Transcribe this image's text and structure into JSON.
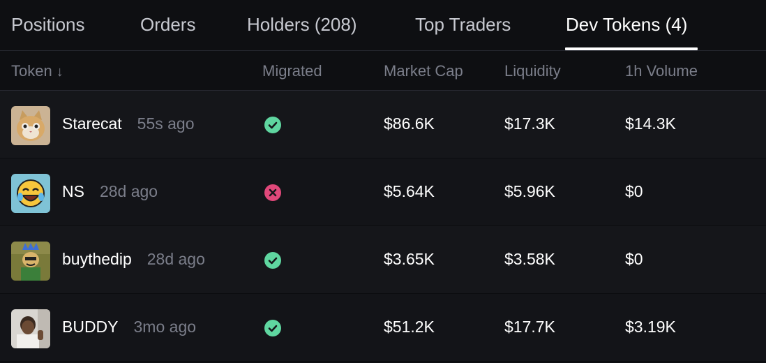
{
  "tabs": [
    {
      "label": "Positions",
      "active": false
    },
    {
      "label": "Orders",
      "active": false
    },
    {
      "label": "Holders (208)",
      "active": false
    },
    {
      "label": "Top Traders",
      "active": false
    },
    {
      "label": "Dev Tokens (4)",
      "active": true
    }
  ],
  "table": {
    "headers": {
      "token": "Token",
      "sort_icon": "arrow-down-icon",
      "migrated": "Migrated",
      "market_cap": "Market Cap",
      "liquidity": "Liquidity",
      "volume_1h": "1h Volume"
    },
    "rows": [
      {
        "name": "Starecat",
        "age": "55s ago",
        "migrated": true,
        "migrated_icon": "check-circle-icon",
        "market_cap": "$86.6K",
        "liquidity": "$17.3K",
        "volume_1h": "$14.3K"
      },
      {
        "name": "NS",
        "age": "28d ago",
        "migrated": false,
        "migrated_icon": "x-circle-icon",
        "market_cap": "$5.64K",
        "liquidity": "$5.96K",
        "volume_1h": "$0"
      },
      {
        "name": "buythedip",
        "age": "28d ago",
        "migrated": true,
        "migrated_icon": "check-circle-icon",
        "market_cap": "$3.65K",
        "liquidity": "$3.58K",
        "volume_1h": "$0"
      },
      {
        "name": "BUDDY",
        "age": "3mo ago",
        "migrated": true,
        "migrated_icon": "check-circle-icon",
        "market_cap": "$51.2K",
        "liquidity": "$17.7K",
        "volume_1h": "$3.19K"
      }
    ]
  },
  "colors": {
    "background": "#0e0f12",
    "row_bg": "#15161a",
    "muted_text": "#7b7e8a",
    "success": "#5fd6a0",
    "danger": "#e0487a"
  }
}
